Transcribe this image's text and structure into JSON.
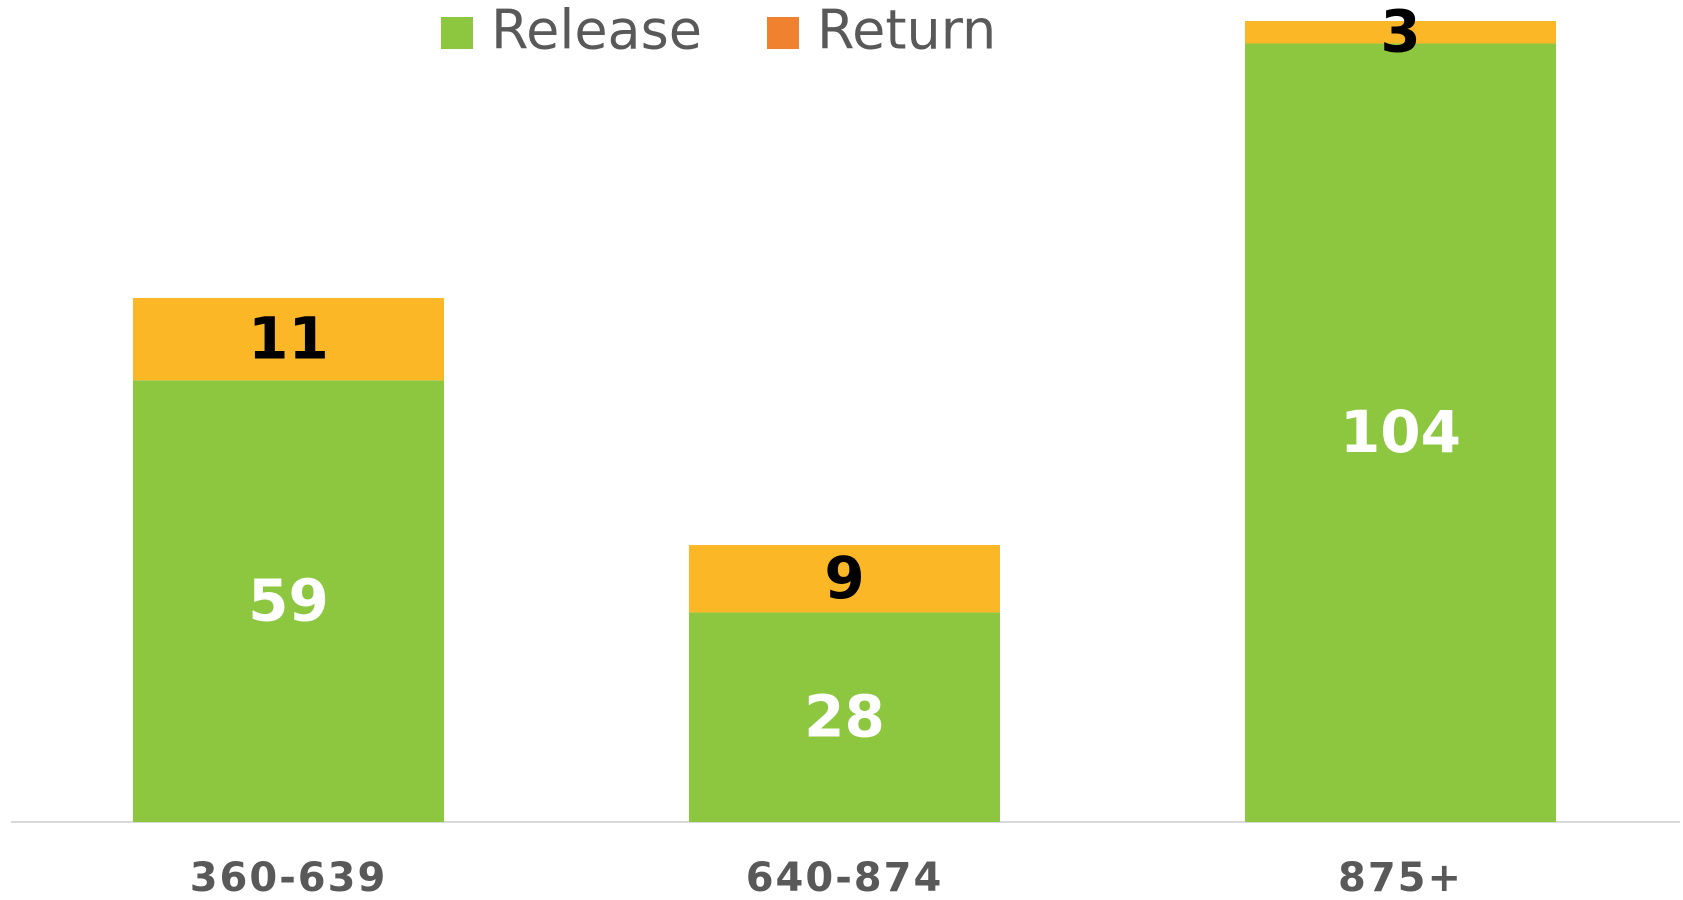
{
  "chart_data": {
    "type": "stacked_bar",
    "categories": [
      "360-639",
      "640-874",
      "875+"
    ],
    "series": [
      {
        "name": "Release",
        "color": "#8dc63f",
        "legend_color": "#8dc63f",
        "values": [
          59,
          28,
          104
        ]
      },
      {
        "name": "Return",
        "color": "#fbb725",
        "legend_color": "#f0812f",
        "values": [
          11,
          9,
          3
        ]
      }
    ],
    "legend": "top"
  }
}
